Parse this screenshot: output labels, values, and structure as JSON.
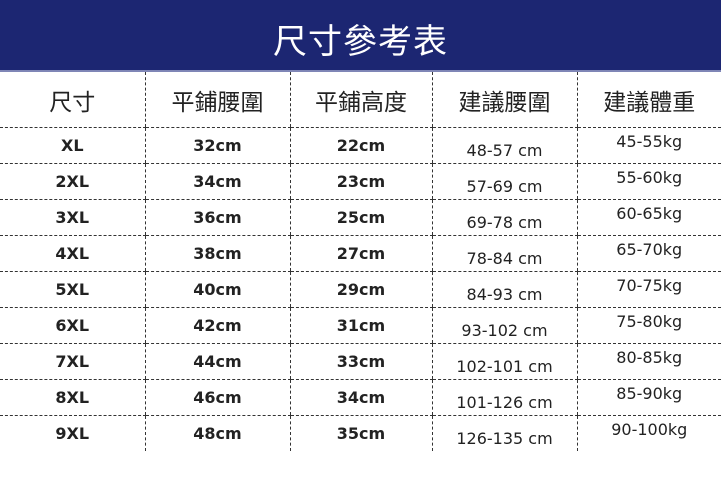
{
  "title": "尺寸參考表",
  "colors": {
    "banner": "#1c2672"
  },
  "headers": [
    "尺寸",
    "平鋪腰圍",
    "平鋪高度",
    "建議腰圍",
    "建議體重"
  ],
  "rows": [
    [
      "XL",
      "32cm",
      "22cm",
      "48-57 cm",
      "45-55kg"
    ],
    [
      "2XL",
      "34cm",
      "23cm",
      "57-69 cm",
      "55-60kg"
    ],
    [
      "3XL",
      "36cm",
      "25cm",
      "69-78 cm",
      "60-65kg"
    ],
    [
      "4XL",
      "38cm",
      "27cm",
      "78-84 cm",
      "65-70kg"
    ],
    [
      "5XL",
      "40cm",
      "29cm",
      "84-93 cm",
      "70-75kg"
    ],
    [
      "6XL",
      "42cm",
      "31cm",
      "93-102 cm",
      "75-80kg"
    ],
    [
      "7XL",
      "44cm",
      "33cm",
      "102-101 cm",
      "80-85kg"
    ],
    [
      "8XL",
      "46cm",
      "34cm",
      "101-126 cm",
      "85-90kg"
    ],
    [
      "9XL",
      "48cm",
      "35cm",
      "126-135 cm",
      "90-100kg"
    ]
  ]
}
